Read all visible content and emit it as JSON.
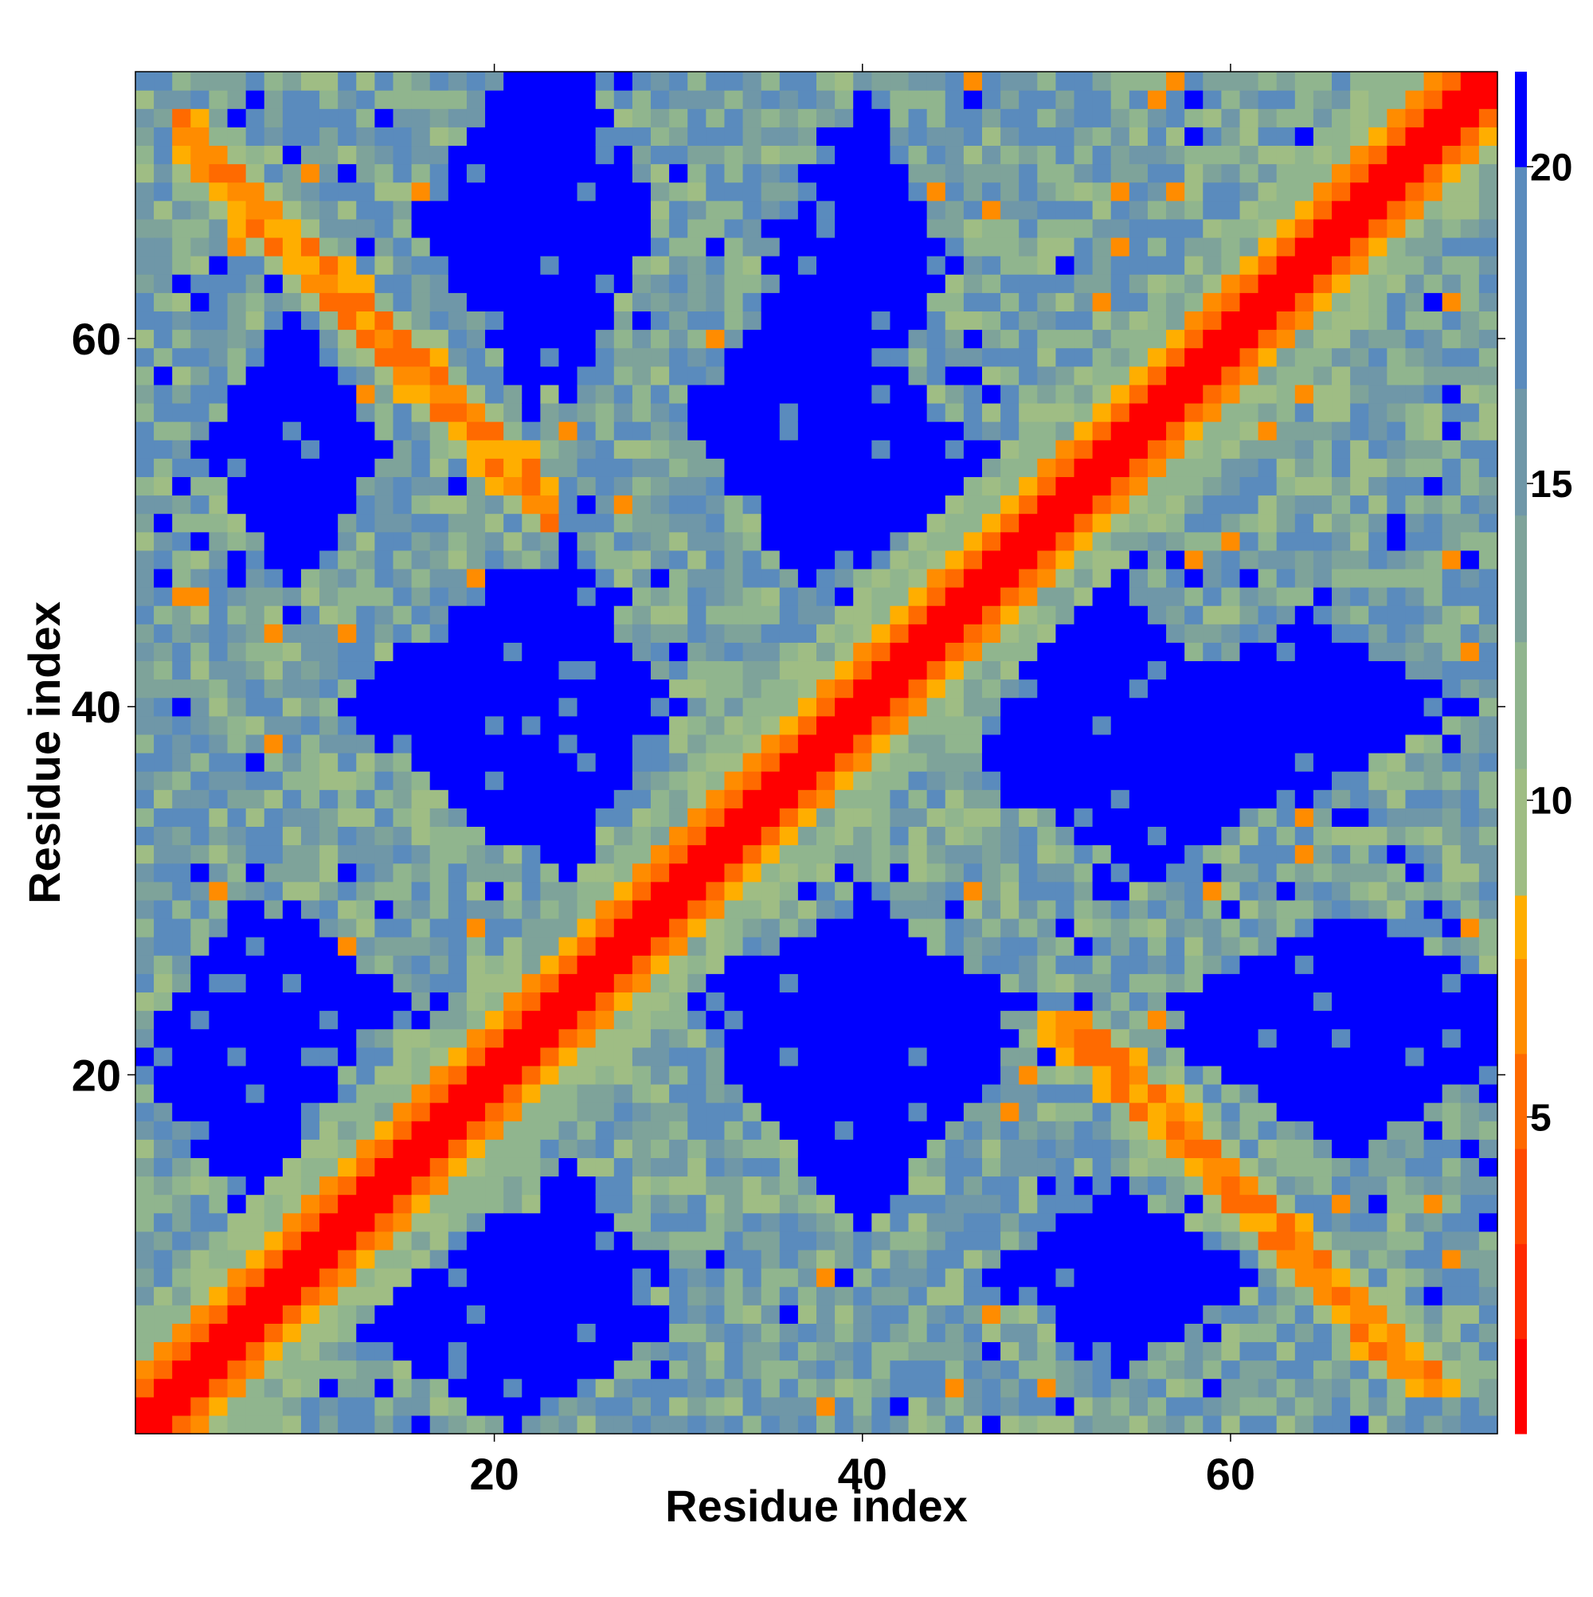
{
  "chart_data": {
    "type": "heatmap",
    "title": "",
    "xlabel": "Residue index",
    "ylabel": "Residue index",
    "n_residues": 74,
    "x_range": [
      1,
      74
    ],
    "y_range": [
      1,
      74
    ],
    "x_ticks": [
      20,
      40,
      60
    ],
    "y_ticks": [
      20,
      40,
      60
    ],
    "colorbar": {
      "range": [
        0,
        21.5
      ],
      "ticks": [
        5,
        10,
        15,
        20
      ],
      "levels": [
        {
          "max": 1.5,
          "color": "#ff0000"
        },
        {
          "max": 3.0,
          "color": "#ff2a00"
        },
        {
          "max": 4.5,
          "color": "#ff4a00"
        },
        {
          "max": 6.0,
          "color": "#ff6a00"
        },
        {
          "max": 7.5,
          "color": "#ff8c00"
        },
        {
          "max": 8.5,
          "color": "#ffae00"
        },
        {
          "max": 10.5,
          "color": "#9fbd84"
        },
        {
          "max": 12.5,
          "color": "#90b58e"
        },
        {
          "max": 14.5,
          "color": "#7ea39a"
        },
        {
          "max": 16.5,
          "color": "#6f97a8"
        },
        {
          "max": 20.0,
          "color": "#5a8bbd"
        },
        {
          "max": 99,
          "color": "#0000ff"
        }
      ]
    },
    "features": {
      "main_diagonal": "near-zero distance along i = j",
      "anti_diagonal_band": "short-range contacts along i + j ≈ 74 between residues ~3–22 and ~52–71",
      "far_blocks": [
        {
          "x": [
            21,
            27
          ],
          "y": [
            60,
            73
          ]
        },
        {
          "x": [
            21,
            27
          ],
          "y": [
            33,
            46
          ]
        },
        {
          "x": [
            21,
            27
          ],
          "y": [
            5,
            13
          ]
        },
        {
          "x": [
            3,
            10
          ],
          "y": [
            15,
            27
          ]
        },
        {
          "x": [
            35,
            45
          ],
          "y": [
            15,
            27
          ]
        },
        {
          "x": [
            35,
            45
          ],
          "y": [
            50,
            57
          ]
        },
        {
          "x": [
            37,
            43
          ],
          "y": [
            58,
            70
          ]
        },
        {
          "x": [
            49,
            62
          ],
          "y": [
            33,
            42
          ]
        },
        {
          "x": [
            60,
            73
          ],
          "y": [
            18,
            26
          ]
        },
        {
          "x": [
            6,
            12
          ],
          "y": [
            50,
            58
          ]
        },
        {
          "x": [
            49,
            59
          ],
          "y": [
            6,
            12
          ]
        }
      ]
    }
  }
}
